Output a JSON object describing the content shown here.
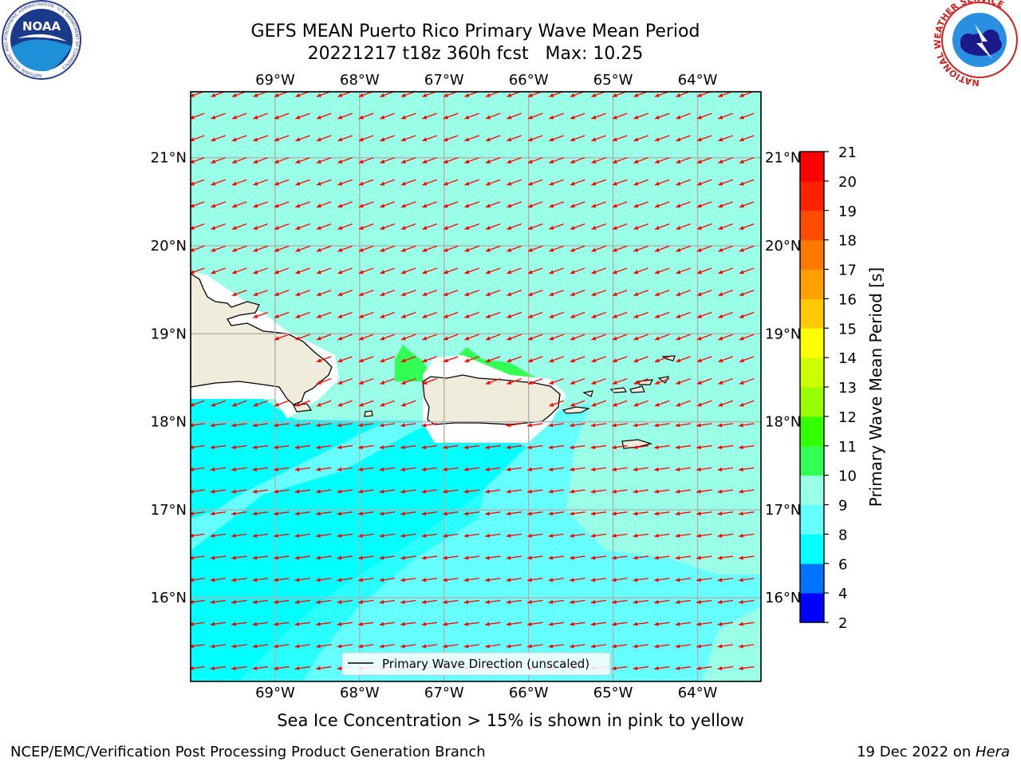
{
  "header": {
    "title": "GEFS MEAN Puerto Rico Primary Wave Mean Period",
    "subtitle": "20221217 t18z 360h fcst   Max: 10.25"
  },
  "logos": {
    "left": "NOAA",
    "left_ring_text": "NATIONAL OCEANIC AND ATMOSPHERIC ADMINISTRATION · U.S. DEPARTMENT OF COMMERCE",
    "right_ring_text": "NATIONAL WEATHER SERVICE"
  },
  "map": {
    "lon_ticks": [
      "69°W",
      "68°W",
      "67°W",
      "66°W",
      "65°W",
      "64°W"
    ],
    "lat_ticks": [
      "21°N",
      "20°N",
      "19°N",
      "18°N",
      "17°N",
      "16°N"
    ],
    "lon_values": [
      -69,
      -68,
      -67,
      -66,
      -65,
      -64
    ],
    "lat_values": [
      21,
      20,
      19,
      18,
      17,
      16
    ],
    "extent": {
      "lon_min": -70,
      "lon_max": -63.25,
      "lat_min": 15.05,
      "lat_max": 21.75
    },
    "legend_label": "Primary Wave Direction (unscaled)",
    "vector_color": "#ff0000",
    "land_color": "#f0ecdc",
    "background_field": "#99ffe6",
    "arrow_direction": "toward west-southwest"
  },
  "colorbar": {
    "label": "Primary Wave Mean Period [s]",
    "ticks": [
      "2",
      "4",
      "6",
      "8",
      "9",
      "10",
      "11",
      "12",
      "13",
      "14",
      "15",
      "16",
      "17",
      "18",
      "19",
      "20",
      "21"
    ],
    "colors": [
      "#0000ff",
      "#0073ff",
      "#00ffff",
      "#66ffff",
      "#99ffe6",
      "#33ff55",
      "#33ff00",
      "#99ff00",
      "#ccff00",
      "#ffff00",
      "#ffc800",
      "#ffa000",
      "#ff7800",
      "#ff4b00",
      "#ff2200",
      "#ff0000"
    ]
  },
  "note": "Sea Ice Concentration > 15% is shown in pink to yellow",
  "footer": {
    "left": "NCEP/EMC/Verification Post Processing Product Generation Branch",
    "right_date": "19 Dec 2022 on ",
    "right_host": "Hera"
  }
}
